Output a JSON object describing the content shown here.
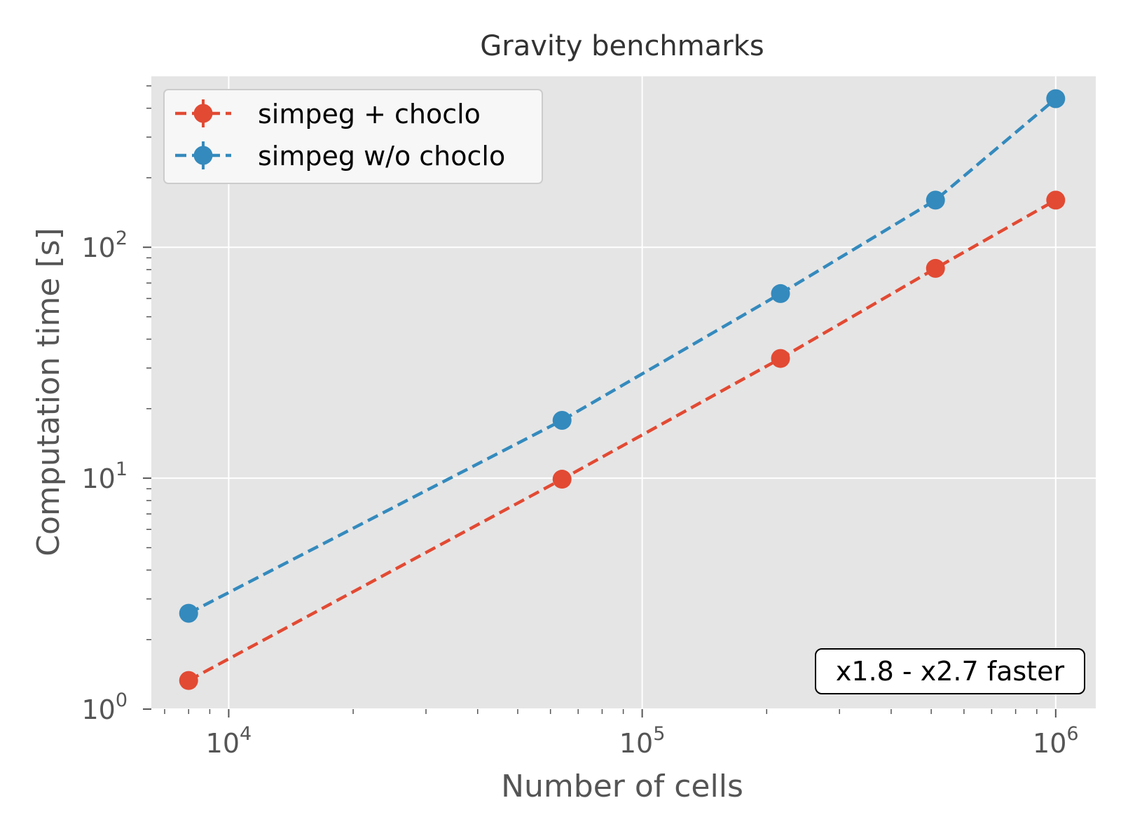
{
  "chart_data": {
    "type": "line",
    "title": "Gravity benchmarks",
    "xlabel": "Number of cells",
    "ylabel": "Computation time [s]",
    "xscale": "log",
    "yscale": "log",
    "xlim": [
      6500,
      1250000
    ],
    "ylim": [
      1,
      550
    ],
    "grid": true,
    "legend_position": "top-left",
    "x_ticks": [
      {
        "value": 10000,
        "base": "10",
        "exp": "4"
      },
      {
        "value": 100000,
        "base": "10",
        "exp": "5"
      },
      {
        "value": 1000000,
        "base": "10",
        "exp": "6"
      }
    ],
    "y_ticks": [
      {
        "value": 1,
        "base": "10",
        "exp": "0"
      },
      {
        "value": 10,
        "base": "10",
        "exp": "1"
      },
      {
        "value": 100,
        "base": "10",
        "exp": "2"
      }
    ],
    "series": [
      {
        "name": "simpeg + choclo",
        "color": "#E24A33",
        "x": [
          8000,
          64000,
          216000,
          512000,
          1000000
        ],
        "y": [
          1.33,
          9.9,
          33,
          81,
          160
        ]
      },
      {
        "name": "simpeg w/o choclo",
        "color": "#348ABD",
        "x": [
          8000,
          64000,
          216000,
          512000,
          1000000
        ],
        "y": [
          2.6,
          17.8,
          63,
          160,
          440
        ]
      }
    ],
    "annotation": "x1.8 - x2.7 faster"
  }
}
